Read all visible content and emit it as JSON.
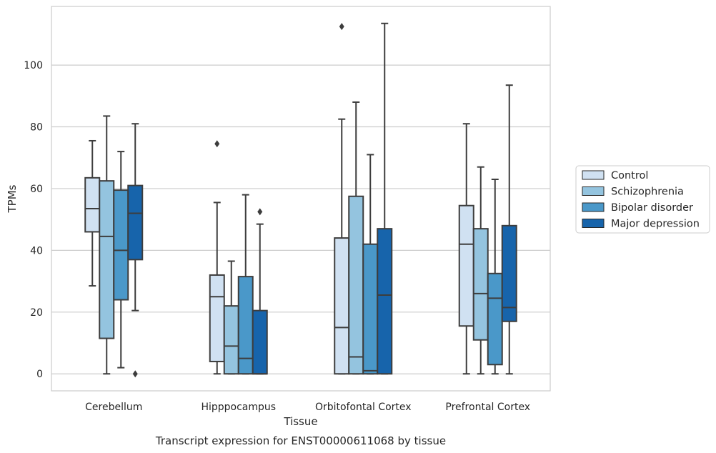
{
  "chart_data": {
    "type": "box",
    "title": "",
    "caption": "Transcript expression for ENST00000611068 by tissue",
    "xlabel": "Tissue",
    "ylabel": "TPMs",
    "ylim": [
      -5.5,
      119
    ],
    "yticks": [
      0,
      20,
      40,
      60,
      80,
      100
    ],
    "grid": "horizontal",
    "legend_position": "right",
    "categories": [
      "Cerebellum",
      "Hipppocampus",
      "Orbitofontal Cortex",
      "Prefrontal Cortex"
    ],
    "series": [
      {
        "name": "Control",
        "color": "#d0e1f2",
        "boxes": [
          {
            "whislo": 28.5,
            "q1": 46,
            "med": 53.5,
            "q3": 63.5,
            "whishi": 75.5,
            "fliers": []
          },
          {
            "whislo": 0,
            "q1": 4,
            "med": 25,
            "q3": 32,
            "whishi": 55.5,
            "fliers": [
              74.5
            ]
          },
          {
            "whislo": 0,
            "q1": 0,
            "med": 15,
            "q3": 44,
            "whishi": 82.5,
            "fliers": [
              112.5
            ]
          },
          {
            "whislo": 0,
            "q1": 15.5,
            "med": 42,
            "q3": 54.5,
            "whishi": 81,
            "fliers": []
          }
        ]
      },
      {
        "name": "Schizophrenia",
        "color": "#94c4df",
        "boxes": [
          {
            "whislo": 0,
            "q1": 11.5,
            "med": 44.5,
            "q3": 62.5,
            "whishi": 83.5,
            "fliers": []
          },
          {
            "whislo": 0,
            "q1": 0,
            "med": 9,
            "q3": 22,
            "whishi": 36.5,
            "fliers": []
          },
          {
            "whislo": 0,
            "q1": 0,
            "med": 5.5,
            "q3": 57.5,
            "whishi": 88,
            "fliers": []
          },
          {
            "whislo": 0,
            "q1": 11,
            "med": 26,
            "q3": 47,
            "whishi": 67,
            "fliers": []
          }
        ]
      },
      {
        "name": "Bipolar disorder",
        "color": "#4a98c9",
        "boxes": [
          {
            "whislo": 2,
            "q1": 24,
            "med": 40,
            "q3": 59.5,
            "whishi": 72,
            "fliers": []
          },
          {
            "whislo": 0,
            "q1": 0,
            "med": 5,
            "q3": 31.5,
            "whishi": 58,
            "fliers": []
          },
          {
            "whislo": 0,
            "q1": 0,
            "med": 1,
            "q3": 42,
            "whishi": 71,
            "fliers": []
          },
          {
            "whislo": 0,
            "q1": 3,
            "med": 24.5,
            "q3": 32.5,
            "whishi": 63,
            "fliers": []
          }
        ]
      },
      {
        "name": "Major depression",
        "color": "#1764ab",
        "boxes": [
          {
            "whislo": 20.5,
            "q1": 37,
            "med": 52,
            "q3": 61,
            "whishi": 81,
            "fliers": [
              0
            ]
          },
          {
            "whislo": 0,
            "q1": 0,
            "med": 0,
            "q3": 20.5,
            "whishi": 48.5,
            "fliers": [
              52.5
            ]
          },
          {
            "whislo": 0,
            "q1": 0,
            "med": 25.5,
            "q3": 47,
            "whishi": 113.5,
            "fliers": []
          },
          {
            "whislo": 0,
            "q1": 17,
            "med": 21.5,
            "q3": 48,
            "whishi": 93.5,
            "fliers": []
          }
        ]
      }
    ]
  }
}
